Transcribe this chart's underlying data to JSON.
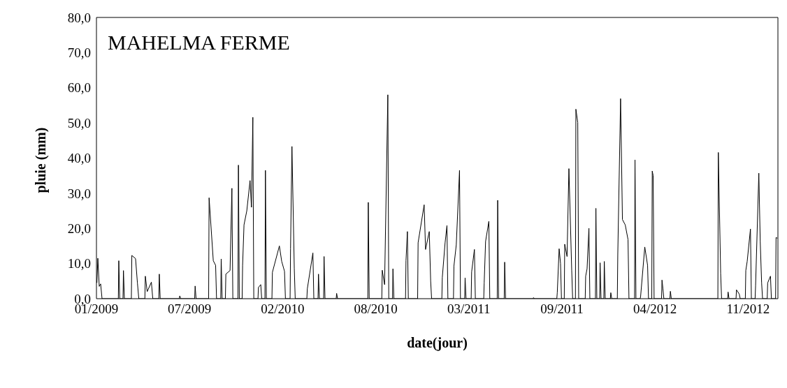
{
  "chart_data": {
    "type": "line",
    "title": "MAHELMA FERME",
    "xlabel": "date(jour)",
    "ylabel": "pluie (mm)",
    "xlim": [
      "2009-01-01",
      "2013-01-04"
    ],
    "xticks": [
      {
        "value": "2009-01-01",
        "label": "01/2009"
      },
      {
        "value": "2009-07-20",
        "label": "07/2009"
      },
      {
        "value": "2010-02-05",
        "label": "02/2010"
      },
      {
        "value": "2010-08-24",
        "label": "08/2010"
      },
      {
        "value": "2011-03-12",
        "label": "03/2011"
      },
      {
        "value": "2011-09-28",
        "label": "09/2011"
      },
      {
        "value": "2012-04-15",
        "label": "04/2012"
      },
      {
        "value": "2012-11-01",
        "label": "11/2012"
      }
    ],
    "ylim": [
      0,
      80
    ],
    "yticks": [
      {
        "value": 0,
        "label": "0,0"
      },
      {
        "value": 10,
        "label": "10,0"
      },
      {
        "value": 20,
        "label": "20,0"
      },
      {
        "value": 30,
        "label": "30,0"
      },
      {
        "value": 40,
        "label": "40,0"
      },
      {
        "value": 50,
        "label": "50,0"
      },
      {
        "value": 60,
        "label": "60,0"
      },
      {
        "value": 70,
        "label": "70,0"
      },
      {
        "value": 80,
        "label": "80,0"
      }
    ],
    "grid": false,
    "legend": false,
    "marker": "none",
    "line_style": "solid",
    "series": [
      {
        "color": "#000000",
        "x": [
          "2009-01-02",
          "2009-01-04",
          "2009-01-07",
          "2009-01-10",
          "2009-01-13",
          "2009-02-17",
          "2009-02-18",
          "2009-02-20",
          "2009-02-27",
          "2009-02-28",
          "2009-03-02",
          "2009-03-17",
          "2009-03-18",
          "2009-03-26",
          "2009-03-30",
          "2009-04-02",
          "2009-04-15",
          "2009-04-16",
          "2009-04-20",
          "2009-04-29",
          "2009-05-02",
          "2009-05-15",
          "2009-05-16",
          "2009-05-18",
          "2009-06-28",
          "2009-06-29",
          "2009-07-01",
          "2009-07-31",
          "2009-08-01",
          "2009-08-03",
          "2009-08-30",
          "2009-08-31",
          "2009-09-09",
          "2009-09-14",
          "2009-09-16",
          "2009-09-25",
          "2009-09-26",
          "2009-09-28",
          "2009-10-05",
          "2009-10-06",
          "2009-10-15",
          "2009-10-19",
          "2009-10-21",
          "2009-11-01",
          "2009-11-02",
          "2009-11-04",
          "2009-11-10",
          "2009-11-11",
          "2009-11-14",
          "2009-11-20",
          "2009-11-27",
          "2009-11-30",
          "2009-12-03",
          "2009-12-05",
          "2009-12-14",
          "2009-12-15",
          "2009-12-20",
          "2009-12-22",
          "2009-12-29",
          "2009-12-30",
          "2010-01-01",
          "2010-01-13",
          "2010-01-14",
          "2010-01-29",
          "2010-02-03",
          "2010-02-09",
          "2010-02-11",
          "2010-02-21",
          "2010-02-22",
          "2010-02-25",
          "2010-03-02",
          "2010-03-04",
          "2010-03-29",
          "2010-03-30",
          "2010-04-11",
          "2010-04-13",
          "2010-04-22",
          "2010-04-23",
          "2010-04-25",
          "2010-05-04",
          "2010-05-05",
          "2010-05-07",
          "2010-05-31",
          "2010-06-01",
          "2010-06-03",
          "2010-08-07",
          "2010-08-08",
          "2010-08-10",
          "2010-09-06",
          "2010-09-07",
          "2010-09-12",
          "2010-09-19",
          "2010-09-21",
          "2010-09-29",
          "2010-09-30",
          "2010-10-02",
          "2010-10-27",
          "2010-10-28",
          "2010-10-31",
          "2010-11-02",
          "2010-11-22",
          "2010-11-23",
          "2010-12-06",
          "2010-12-09",
          "2010-12-17",
          "2010-12-20",
          "2010-12-22",
          "2011-01-13",
          "2011-01-14",
          "2011-01-20",
          "2011-01-24",
          "2011-01-26",
          "2011-02-07",
          "2011-02-08",
          "2011-02-13",
          "2011-02-20",
          "2011-02-22",
          "2011-03-03",
          "2011-03-04",
          "2011-03-06",
          "2011-03-17",
          "2011-03-18",
          "2011-03-24",
          "2011-03-26",
          "2011-04-13",
          "2011-04-14",
          "2011-04-17",
          "2011-04-24",
          "2011-04-26",
          "2011-05-12",
          "2011-05-13",
          "2011-05-15",
          "2011-05-27",
          "2011-05-28",
          "2011-05-30",
          "2011-07-28",
          "2011-07-29",
          "2011-07-31",
          "2011-09-17",
          "2011-09-18",
          "2011-09-22",
          "2011-09-25",
          "2011-09-27",
          "2011-10-03",
          "2011-10-04",
          "2011-10-09",
          "2011-10-13",
          "2011-10-19",
          "2011-10-21",
          "2011-10-27",
          "2011-10-28",
          "2011-11-01",
          "2011-11-03",
          "2011-11-17",
          "2011-11-18",
          "2011-11-21",
          "2011-11-25",
          "2011-11-27",
          "2011-12-09",
          "2011-12-10",
          "2011-12-12",
          "2011-12-18",
          "2011-12-19",
          "2011-12-21",
          "2011-12-27",
          "2011-12-28",
          "2011-12-30",
          "2012-01-10",
          "2012-01-11",
          "2012-01-13",
          "2012-01-25",
          "2012-01-26",
          "2012-02-01",
          "2012-02-05",
          "2012-02-11",
          "2012-02-17",
          "2012-02-19",
          "2012-03-02",
          "2012-03-03",
          "2012-03-05",
          "2012-03-14",
          "2012-03-15",
          "2012-03-24",
          "2012-03-30",
          "2012-04-01",
          "2012-04-08",
          "2012-04-09",
          "2012-04-11",
          "2012-04-13",
          "2012-04-29",
          "2012-04-30",
          "2012-05-02",
          "2012-05-04",
          "2012-05-17",
          "2012-05-18",
          "2012-05-20",
          "2012-08-28",
          "2012-08-29",
          "2012-09-03",
          "2012-09-05",
          "2012-09-18",
          "2012-09-19",
          "2012-09-21",
          "2012-10-06",
          "2012-10-07",
          "2012-10-13",
          "2012-10-15",
          "2012-10-26",
          "2012-10-27",
          "2012-10-30",
          "2012-11-06",
          "2012-11-08",
          "2012-11-16",
          "2012-11-17",
          "2012-11-24",
          "2012-11-27",
          "2012-11-30",
          "2012-12-02",
          "2012-12-12",
          "2012-12-13",
          "2012-12-19",
          "2012-12-21",
          "2012-12-30",
          "2012-12-31",
          "2013-01-03"
        ],
        "values": [
          4.5,
          11.5,
          3.5,
          4.2,
          0,
          0,
          10.8,
          0,
          0,
          8,
          0,
          0,
          12.3,
          11.4,
          4.5,
          0,
          0,
          6.4,
          2,
          4.7,
          0,
          0,
          7,
          0,
          0,
          0.8,
          0,
          0,
          3.6,
          0,
          0,
          28.7,
          10.8,
          9.5,
          0,
          0,
          11.3,
          0,
          0,
          7,
          8,
          31.4,
          0,
          0,
          38,
          0,
          0,
          9.5,
          21,
          25,
          33.6,
          26,
          51.6,
          0,
          0,
          3.2,
          4,
          0,
          0,
          36.5,
          0,
          0,
          7.5,
          15,
          10.6,
          7.8,
          0,
          0,
          14.2,
          43.3,
          8.7,
          0,
          0,
          2.8,
          13,
          0,
          0,
          7,
          0,
          0,
          12,
          0,
          0,
          1.5,
          0,
          0,
          27.4,
          0,
          0,
          8.1,
          4,
          58,
          0,
          0,
          8.5,
          0,
          0,
          10.8,
          19.1,
          0,
          0,
          15.9,
          26.7,
          14,
          19.1,
          5,
          0,
          0,
          6,
          15.9,
          20.8,
          0,
          0,
          9.3,
          15.3,
          36.5,
          0,
          0,
          5.9,
          0,
          0,
          7.6,
          14,
          0,
          0,
          4.5,
          16.3,
          22,
          0,
          0,
          28,
          0,
          0,
          10.4,
          0,
          0,
          0.3,
          0,
          0,
          1.7,
          14.2,
          10,
          0,
          0,
          15.5,
          12,
          37,
          8.1,
          0,
          0,
          53.9,
          50.1,
          0,
          0,
          6.4,
          8.5,
          20,
          0,
          0,
          25.7,
          0,
          0,
          10.2,
          0,
          0,
          10.6,
          0,
          0,
          1.7,
          0,
          0,
          12.5,
          56.9,
          22.5,
          21,
          16.8,
          0,
          0,
          39.5,
          0,
          0,
          0.6,
          14.7,
          9.5,
          0,
          0,
          36.3,
          35,
          0,
          0,
          5.3,
          2.8,
          0,
          0,
          2.1,
          0,
          0,
          41.6,
          7.2,
          0,
          0,
          1.9,
          0,
          0,
          2.5,
          1.3,
          0,
          0,
          8,
          10.6,
          19.8,
          0,
          0,
          3.6,
          35.7,
          16.3,
          4.5,
          0,
          0,
          4.5,
          6.4,
          0,
          0,
          17.4,
          17.2
        ]
      }
    ]
  }
}
